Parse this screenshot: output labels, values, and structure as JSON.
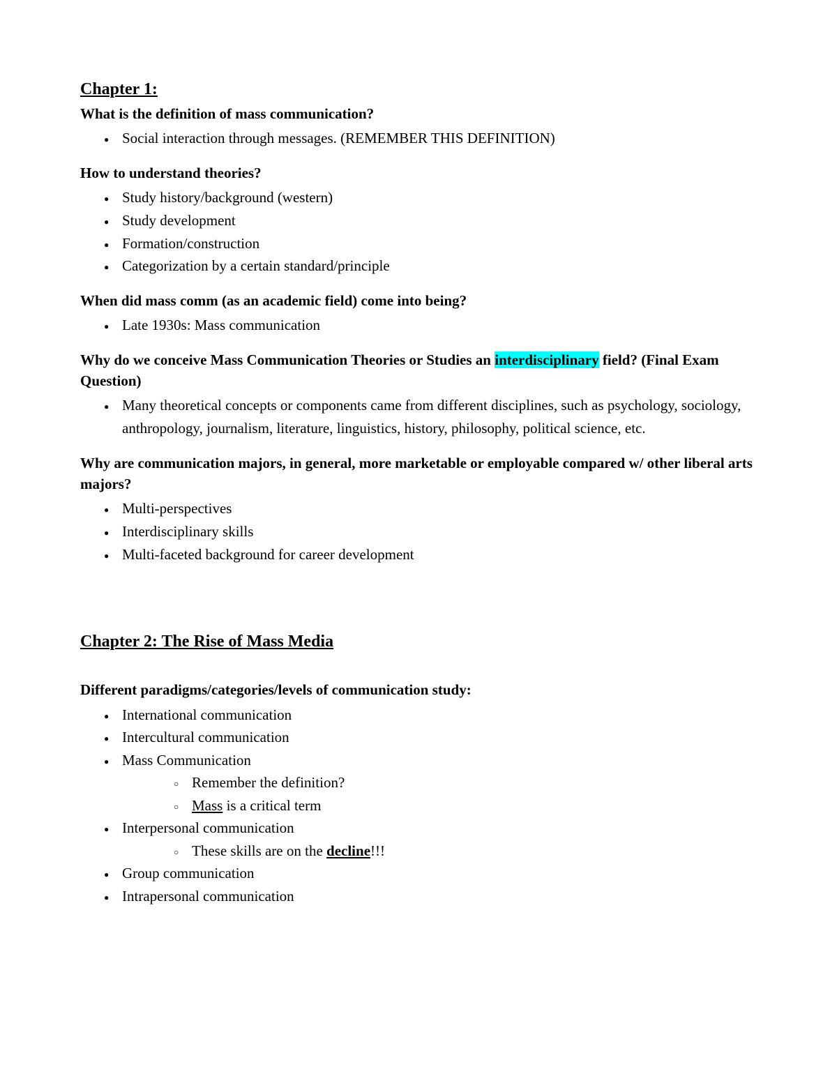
{
  "colors": {
    "text": "#000000",
    "background": "#ffffff",
    "highlight": "#00ffff"
  },
  "typography": {
    "font_family": "Times New Roman",
    "body_fontsize": 21,
    "title_fontsize": 24
  },
  "ch1": {
    "title": "Chapter 1:",
    "q1": {
      "text": "What is the definition of mass communication?",
      "items": [
        "Social interaction through messages. (REMEMBER THIS DEFINITION)"
      ]
    },
    "q2": {
      "text": "How to understand theories?",
      "items": [
        "Study history/background (western)",
        "Study development",
        "Formation/construction",
        "Categorization by a certain standard/principle"
      ]
    },
    "q3": {
      "text": "When did mass comm (as an academic field) come into being?",
      "items": [
        "Late 1930s: Mass communication"
      ]
    },
    "q4": {
      "prefix": "Why do we conceive Mass Communication Theories or Studies an ",
      "highlight": "interdisciplinary",
      "suffix": " field? (Final Exam Question)",
      "items": [
        "Many theoretical concepts or components came from different disciplines, such as psychology, sociology, anthropology, journalism, literature, linguistics, history, philosophy, political science, etc."
      ]
    },
    "q5": {
      "text": "Why are communication majors, in general, more marketable or employable compared w/ other liberal arts majors?",
      "items": [
        "Multi-perspectives",
        "Interdisciplinary skills",
        "Multi-faceted background for career development"
      ]
    }
  },
  "ch2": {
    "title": "Chapter 2: The Rise of Mass Media",
    "q1": {
      "text": "Different paradigms/categories/levels of communication study:",
      "items": [
        {
          "text": "International communication"
        },
        {
          "text": "Intercultural communication"
        },
        {
          "text": "Mass Communication",
          "sub": [
            {
              "text": "Remember the definition?"
            },
            {
              "prefix": "",
              "underline": "Mass",
              "suffix": " is a critical term"
            }
          ]
        },
        {
          "text": "Interpersonal communication",
          "sub": [
            {
              "prefix": "These skills are on the ",
              "bold_underline": "decline",
              "suffix": "!!!"
            }
          ]
        },
        {
          "text": "Group communication"
        },
        {
          "text": "Intrapersonal communication"
        }
      ]
    }
  }
}
